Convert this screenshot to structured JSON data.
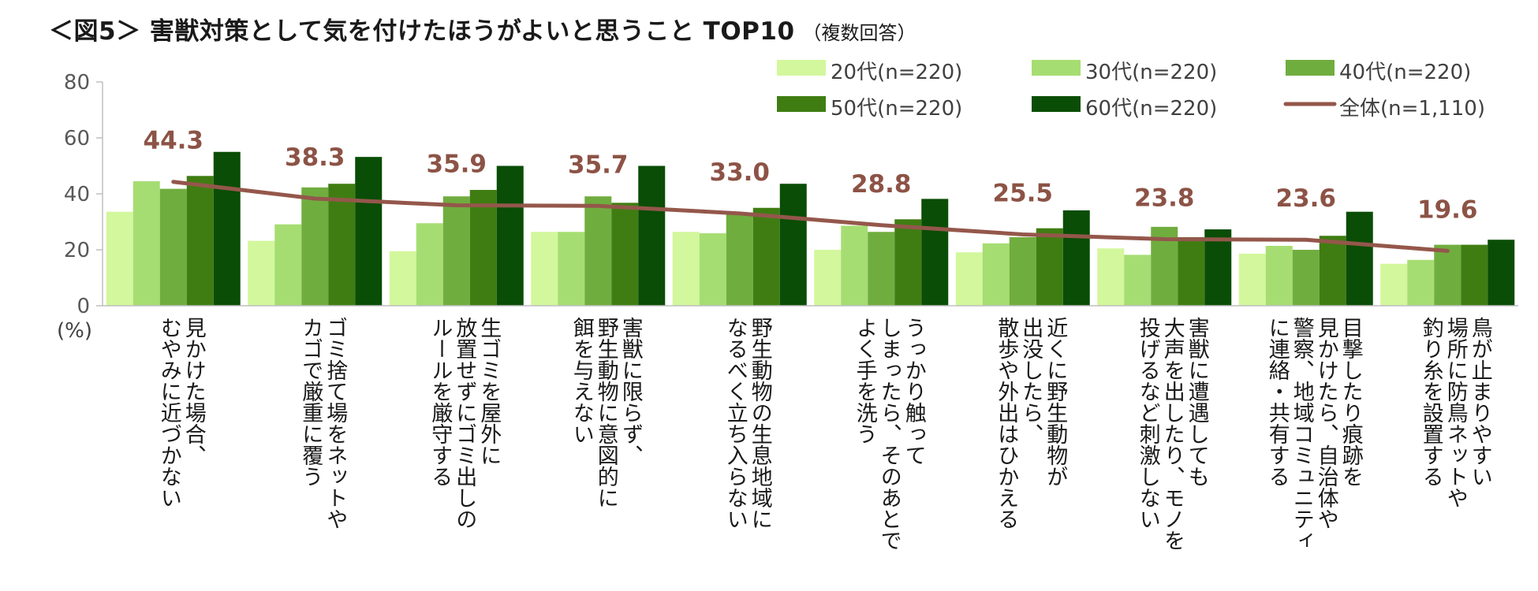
{
  "title": {
    "main": "＜図5＞ 害獣対策として気を付けたほうがよいと思うこと TOP10",
    "sub": "（複数回答）"
  },
  "chart_data": {
    "type": "bar",
    "unit": "(%)",
    "ylim": [
      0,
      80
    ],
    "yticks": [
      "0",
      "20",
      "40",
      "60",
      "80"
    ],
    "categories": [
      [
        "見かけた場合、",
        "むやみに近づかない"
      ],
      [
        "ゴミ捨て場をネットや",
        "カゴで厳重に覆う"
      ],
      [
        "生ゴミを屋外に",
        "放置せずにゴミ出しの",
        "ルールを厳守する"
      ],
      [
        "害獣に限らず、",
        "野生動物に意図的に",
        "餌を与えない"
      ],
      [
        "野生動物の生息地域に",
        "なるべく立ち入らない"
      ],
      [
        "うっかり触って",
        "しまったら、そのあとで",
        "よく手を洗う"
      ],
      [
        "近くに野生動物が",
        "出没したら、",
        "散歩や外出はひかえる"
      ],
      [
        "害獣に遭遇しても",
        "大声を出したり、モノを",
        "投げるなど刺激しない"
      ],
      [
        "目撃したり痕跡を",
        "見かけたら、自治体や",
        "警察、地域コミュニティ",
        "に連絡・共有する"
      ],
      [
        "鳥が止まりやすい",
        "場所に防鳥ネットや",
        "釣り糸を設置する"
      ]
    ],
    "series": [
      {
        "name": "20代(n=220)",
        "color": "#d3f79c",
        "values": [
          33.6,
          23.2,
          19.5,
          26.4,
          26.4,
          20.0,
          19.1,
          20.5,
          18.6,
          15.0
        ]
      },
      {
        "name": "30代(n=220)",
        "color": "#a6dd72",
        "values": [
          44.5,
          29.1,
          29.5,
          26.4,
          25.9,
          28.6,
          22.3,
          18.2,
          21.4,
          16.4
        ]
      },
      {
        "name": "40代(n=220)",
        "color": "#70ad3f",
        "values": [
          41.8,
          42.3,
          39.1,
          39.1,
          33.2,
          26.4,
          24.5,
          28.2,
          20.0,
          21.8
        ]
      },
      {
        "name": "50代(n=220)",
        "color": "#3f7d12",
        "values": [
          46.4,
          43.6,
          41.4,
          36.8,
          35.0,
          30.9,
          27.7,
          24.5,
          25.0,
          21.8
        ]
      },
      {
        "name": "60代(n=220)",
        "color": "#0a4d06",
        "values": [
          55.0,
          53.2,
          50.0,
          50.0,
          43.6,
          38.2,
          34.1,
          27.3,
          33.6,
          23.6
        ]
      }
    ],
    "line_series": {
      "name": "全体(n=1,110)",
      "color": "#94574b",
      "values": [
        44.3,
        38.3,
        35.9,
        35.7,
        33.0,
        28.8,
        25.5,
        23.8,
        23.6,
        19.6
      ],
      "labels": [
        "44.3",
        "38.3",
        "35.9",
        "35.7",
        "33.0",
        "28.8",
        "25.5",
        "23.8",
        "23.6",
        "19.6"
      ]
    }
  }
}
